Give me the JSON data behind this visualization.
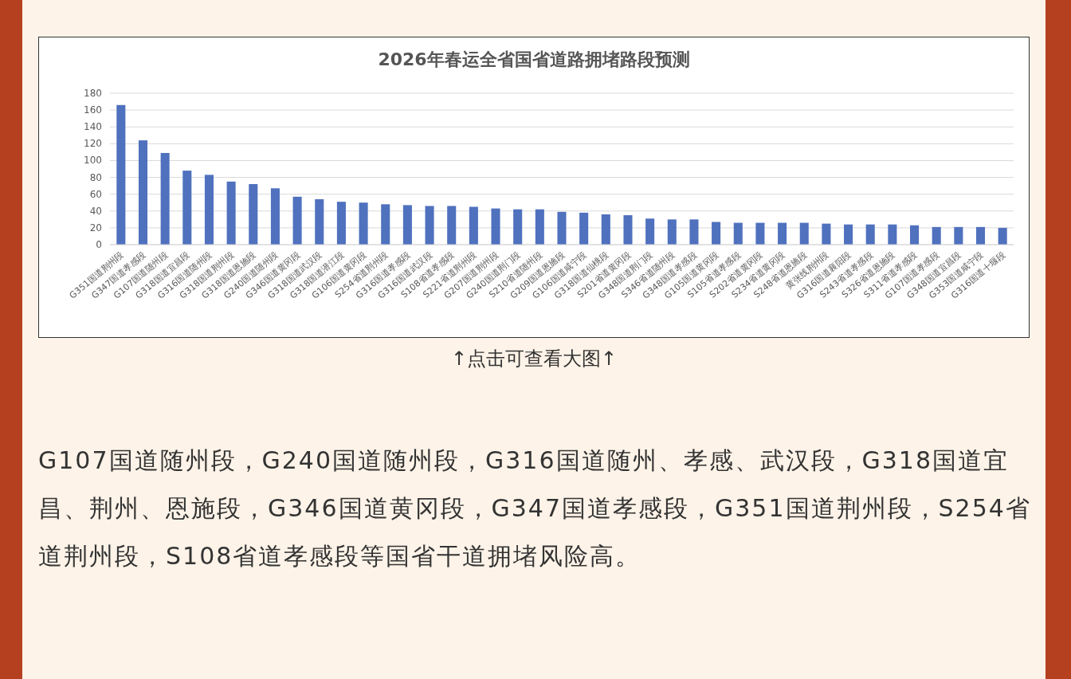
{
  "chart_data": {
    "type": "bar",
    "title": "2026年春运全省国省道路拥堵路段预测",
    "categories": [
      "G351国道荆州段",
      "G347国道孝感段",
      "G107国道随州段",
      "G318国道宜昌段",
      "G316国道随州段",
      "G318国道荆州段",
      "G318国道恩施段",
      "G240国道随州段",
      "G346国道黄冈段",
      "G318国道武汉段",
      "G318国道潜江段",
      "G106国道黄冈段",
      "S254省道荆州段",
      "G316国道孝感段",
      "G316国道武汉段",
      "S108省道孝感段",
      "S221省道荆州段",
      "G207国道荆州段",
      "G240国道荆门段",
      "S210省道随州段",
      "G209国道恩施段",
      "G106国道咸宁段",
      "G318国道仙桃段",
      "S201省道黄冈段",
      "G348国道荆门段",
      "S346省道随州段",
      "G348国道孝感段",
      "G105国道黄冈段",
      "S105省道孝感段",
      "S202省道黄冈段",
      "S234省道黄冈段",
      "S248省道恩施段",
      "黄张线荆州段",
      "G316国道襄阳段",
      "S243省道孝感段",
      "S326省道恩施段",
      "S311省道孝感段",
      "G107国道孝感段",
      "G348国道宜昌段",
      "G353国道咸宁段",
      "G316国道十堰段"
    ],
    "values": [
      166,
      124,
      109,
      88,
      83,
      75,
      72,
      67,
      57,
      54,
      51,
      50,
      48,
      47,
      46,
      46,
      45,
      43,
      42,
      42,
      39,
      38,
      36,
      35,
      31,
      30,
      30,
      27,
      26,
      26,
      26,
      26,
      25,
      24,
      24,
      24,
      23,
      21,
      21,
      21,
      20
    ],
    "color": "#4f71be",
    "ylim": [
      0,
      180
    ],
    "yticks": [
      0,
      20,
      40,
      60,
      80,
      100,
      120,
      140,
      160,
      180
    ],
    "grid": "y",
    "annotations": [
      "↑点击可查看大图↑",
      "G107国道随州段，G240国道随州段，G316国道随州、孝感、武汉段，G318国道宜昌、荆州、恩施段，G346国道黄冈段，G347国道孝感段，G351国道荆州段，S254省道荆州段，S108省道孝感段等国省干道拥堵风险高。"
    ]
  }
}
